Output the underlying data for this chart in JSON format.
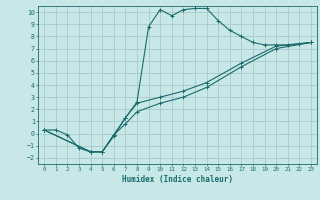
{
  "xlabel": "Humidex (Indice chaleur)",
  "ylabel": "",
  "bg_color": "#c8e8e8",
  "grid_color": "#a8caca",
  "line_color": "#1a6b6b",
  "xlim": [
    -0.5,
    23.5
  ],
  "ylim": [
    -2.5,
    10.5
  ],
  "xticks": [
    0,
    1,
    2,
    3,
    4,
    5,
    6,
    7,
    8,
    9,
    10,
    11,
    12,
    13,
    14,
    15,
    16,
    17,
    18,
    19,
    20,
    21,
    22,
    23
  ],
  "yticks": [
    -2,
    -1,
    0,
    1,
    2,
    3,
    4,
    5,
    6,
    7,
    8,
    9,
    10
  ],
  "line1_x": [
    0,
    1,
    2,
    3,
    4,
    5,
    6,
    7,
    8,
    9,
    10,
    11,
    12,
    13,
    14,
    15,
    16,
    17,
    18,
    19,
    20,
    21,
    22,
    23
  ],
  "line1_y": [
    0.3,
    0.3,
    -0.1,
    -1.2,
    -1.5,
    -1.5,
    -0.2,
    1.3,
    2.6,
    8.8,
    10.2,
    9.7,
    10.2,
    10.3,
    10.3,
    9.3,
    8.5,
    8.0,
    7.5,
    7.3,
    7.3,
    7.3,
    7.4,
    7.5
  ],
  "line2_x": [
    0,
    23
  ],
  "line2_y": [
    0.3,
    7.5
  ],
  "line3_x": [
    0,
    23
  ],
  "line3_y": [
    0.3,
    7.5
  ],
  "line4_x": [
    0,
    4,
    5,
    6,
    7,
    8,
    10,
    12,
    14,
    17,
    20,
    23
  ],
  "line4_y": [
    0.3,
    -1.5,
    -1.5,
    -0.1,
    1.3,
    2.5,
    3.0,
    3.5,
    4.2,
    5.8,
    7.2,
    7.5
  ],
  "line5_x": [
    0,
    4,
    5,
    6,
    7,
    8,
    10,
    12,
    14,
    17,
    20,
    23
  ],
  "line5_y": [
    0.3,
    -1.5,
    -1.5,
    -0.1,
    0.8,
    1.8,
    2.5,
    3.0,
    3.8,
    5.5,
    7.0,
    7.5
  ]
}
